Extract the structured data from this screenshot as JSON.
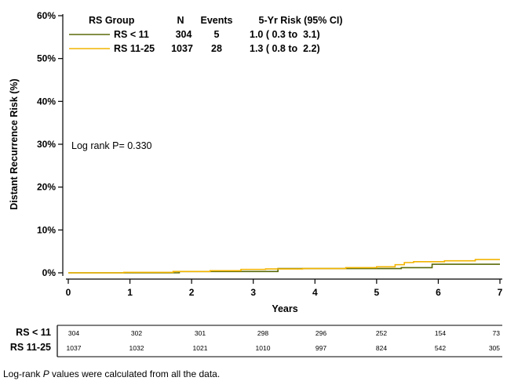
{
  "chart_data": {
    "type": "line",
    "step": true,
    "ylabel": "Distant Recurrence Risk (%)",
    "xlabel": "Years",
    "xlim": [
      0,
      7
    ],
    "ylim": [
      0,
      60
    ],
    "x_ticks": [
      "0",
      "1",
      "2",
      "3",
      "4",
      "5",
      "6",
      "7"
    ],
    "y_ticks": [
      "0%",
      "10%",
      "20%",
      "30%",
      "40%",
      "50%",
      "60%"
    ],
    "legend": {
      "position": "top-left",
      "headers": [
        "RS Group",
        "N",
        "Events",
        "5-Yr Risk (95% CI)"
      ],
      "rows": [
        {
          "group": "RS < 11",
          "n": "304",
          "events": "5",
          "risk": "1.0 ( 0.3 to  3.1)"
        },
        {
          "group": "RS 11-25",
          "n": "1037",
          "events": "28",
          "risk": "1.3 ( 0.8 to  2.2)"
        }
      ]
    },
    "annotation": "Log rank P= 0.330",
    "series": [
      {
        "name": "RS < 11",
        "color": "#5a6a08",
        "x": [
          0,
          1.8,
          3.4,
          5.4,
          5.9,
          7.0
        ],
        "y": [
          0,
          0.3,
          1.0,
          1.2,
          2.0,
          2.0
        ]
      },
      {
        "name": "RS 11-25",
        "color": "#f2b400",
        "x": [
          0,
          0.9,
          1.7,
          2.3,
          2.8,
          3.2,
          3.8,
          4.5,
          5.0,
          5.3,
          5.45,
          5.6,
          6.1,
          6.6,
          7.0
        ],
        "y": [
          0,
          0.1,
          0.3,
          0.5,
          0.8,
          0.9,
          1.0,
          1.2,
          1.4,
          1.9,
          2.4,
          2.6,
          2.8,
          3.1,
          3.1
        ]
      }
    ]
  },
  "risk_table": {
    "rows": [
      {
        "label": "RS < 11",
        "values": [
          "304",
          "302",
          "301",
          "298",
          "296",
          "252",
          "154",
          "73"
        ]
      },
      {
        "label": "RS 11-25",
        "values": [
          "1037",
          "1032",
          "1021",
          "1010",
          "997",
          "824",
          "542",
          "305"
        ]
      }
    ]
  },
  "footnote": {
    "before": "Log-rank ",
    "italic": "P",
    "after": " values were calculated from all the data."
  }
}
